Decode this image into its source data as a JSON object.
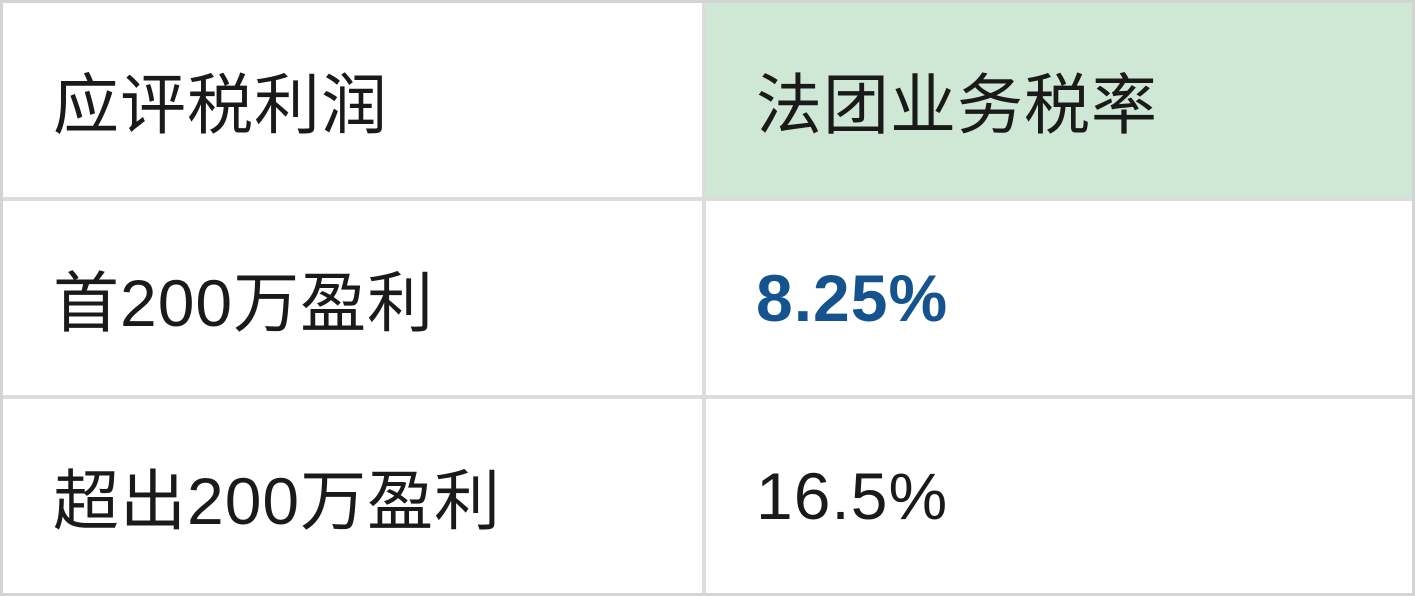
{
  "table": {
    "title_semantic": "corporate-profits-tax-rate-table",
    "header": {
      "assessable_profits": "应评税利润",
      "corporate_tax_rate": "法团业务税率"
    },
    "rows": [
      {
        "profit_band": "首200万盈利",
        "rate": "8.25%",
        "highlighted": true
      },
      {
        "profit_band": "超出200万盈利",
        "rate": "16.5%",
        "highlighted": false
      }
    ],
    "colors": {
      "header_highlight_bg": "#cfe8d5",
      "rate_highlight_text": "#15538f",
      "body_text": "#1a1a1a",
      "inner_border": "#dcdcdc",
      "outer_border": "#d4d4d4",
      "cell_bg": "#ffffff"
    }
  }
}
